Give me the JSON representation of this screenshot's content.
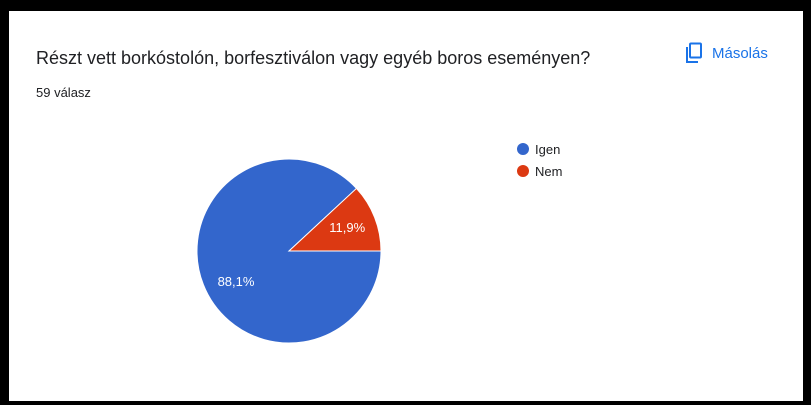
{
  "question": {
    "title": "Részt vett borkóstolón, borfesztiválon vagy egyéb boros eseményen?",
    "response_count": "59 válasz"
  },
  "copy_button": {
    "label": "Másolás",
    "icon": "copy-icon"
  },
  "colors": {
    "accent": "#1a73e8",
    "series_1": "#3366cc",
    "series_2": "#dc3912"
  },
  "chart_data": {
    "type": "pie",
    "categories": [
      "Igen",
      "Nem"
    ],
    "values": [
      88.1,
      11.9
    ],
    "data_labels": [
      "88,1%",
      "11,9%"
    ],
    "colors": [
      "#3366cc",
      "#dc3912"
    ],
    "legend": {
      "position": "right",
      "entries": [
        "Igen",
        "Nem"
      ]
    }
  }
}
